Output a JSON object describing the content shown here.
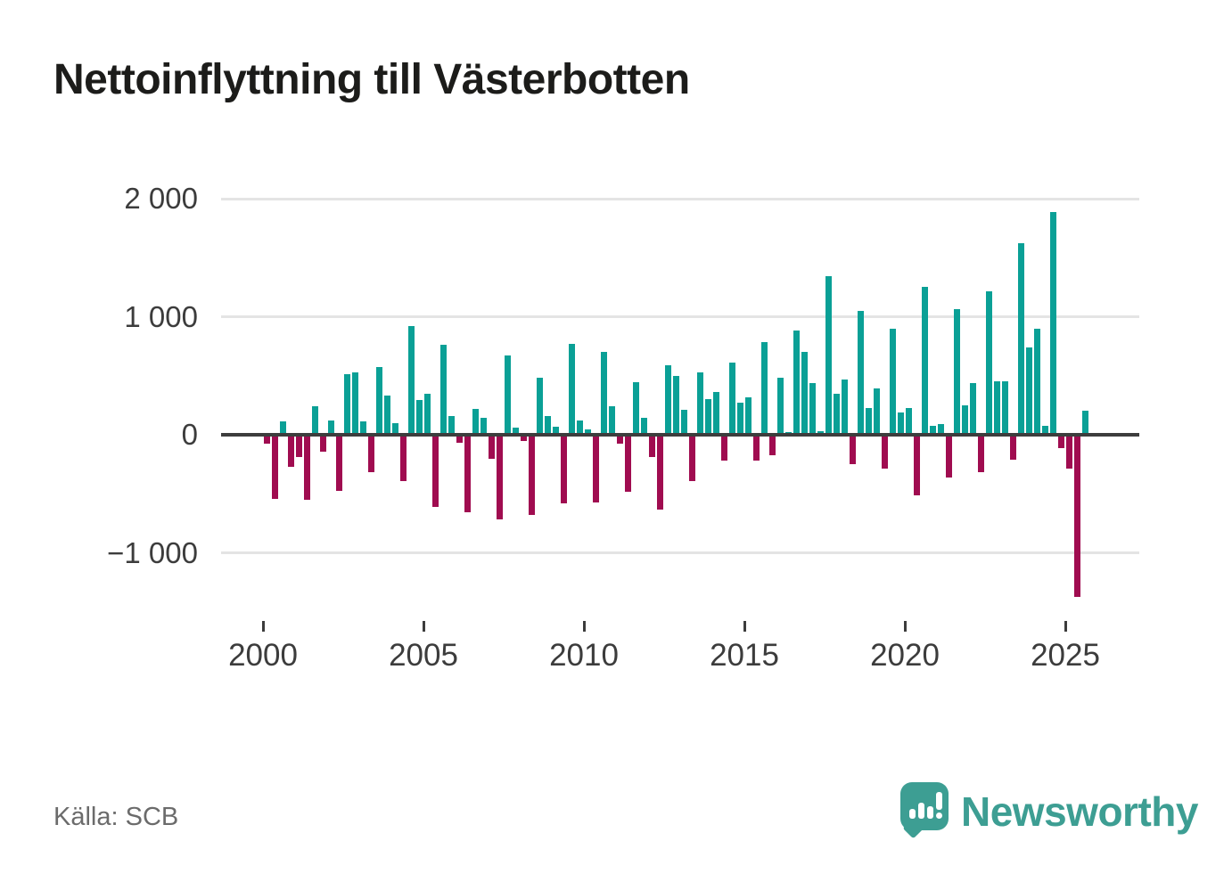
{
  "title": "Nettoinflyttning till Västerbotten",
  "source": "Källa: SCB",
  "logo": {
    "icon": "speech-bubble-bar-chart-icon",
    "text": "Newsworthy"
  },
  "colors": {
    "positive": "#0aa096",
    "negative": "#a00c50",
    "grid": "#e4e4e4",
    "zero_line": "#3d3d3d",
    "axis_text": "#3c3c3c",
    "title_text": "#1c1c1a",
    "source_text": "#6b6b6b",
    "logo": "#3d9e93"
  },
  "chart_data": {
    "type": "bar",
    "title": "Nettoinflyttning till Västerbotten",
    "xlabel": "",
    "ylabel": "",
    "legend": "none",
    "grid": "horizontal",
    "ylim": [
      -1500,
      2100
    ],
    "y_ticks": [
      2000,
      1000,
      0,
      -1000
    ],
    "y_tick_labels": [
      "2 000",
      "1 000",
      "0",
      "−1 000"
    ],
    "x_tick_years": [
      2000,
      2005,
      2010,
      2015,
      2020,
      2025
    ],
    "x_tick_labels": [
      "2000",
      "2005",
      "2010",
      "2015",
      "2020",
      "2025"
    ],
    "categories": [
      "2000K1",
      "2000K2",
      "2000K3",
      "2000K4",
      "2001K1",
      "2001K2",
      "2001K3",
      "2001K4",
      "2002K1",
      "2002K2",
      "2002K3",
      "2002K4",
      "2003K1",
      "2003K2",
      "2003K3",
      "2003K4",
      "2004K1",
      "2004K2",
      "2004K3",
      "2004K4",
      "2005K1",
      "2005K2",
      "2005K3",
      "2005K4",
      "2006K1",
      "2006K2",
      "2006K3",
      "2006K4",
      "2007K1",
      "2007K2",
      "2007K3",
      "2007K4",
      "2008K1",
      "2008K2",
      "2008K3",
      "2008K4",
      "2009K1",
      "2009K2",
      "2009K3",
      "2009K4",
      "2010K1",
      "2010K2",
      "2010K3",
      "2010K4",
      "2011K1",
      "2011K2",
      "2011K3",
      "2011K4",
      "2012K1",
      "2012K2",
      "2012K3",
      "2012K4",
      "2013K1",
      "2013K2",
      "2013K3",
      "2013K4",
      "2014K1",
      "2014K2",
      "2014K3",
      "2014K4",
      "2015K1",
      "2015K2",
      "2015K3",
      "2015K4",
      "2016K1",
      "2016K2",
      "2016K3",
      "2016K4",
      "2017K1",
      "2017K2",
      "2017K3",
      "2017K4",
      "2018K1",
      "2018K2",
      "2018K3",
      "2018K4",
      "2019K1",
      "2019K2",
      "2019K3",
      "2019K4",
      "2020K1",
      "2020K2",
      "2020K3",
      "2020K4",
      "2021K1",
      "2021K2",
      "2021K3",
      "2021K4",
      "2022K1",
      "2022K2",
      "2022K3",
      "2022K4",
      "2023K1",
      "2023K2",
      "2023K3",
      "2023K4",
      "2024K1",
      "2024K2",
      "2024K3",
      "2024K4",
      "2025K1",
      "2025K2",
      "2025K3"
    ],
    "values": [
      -75,
      -545,
      110,
      -270,
      -190,
      -550,
      240,
      -145,
      120,
      -475,
      515,
      525,
      110,
      -315,
      575,
      335,
      100,
      -395,
      920,
      295,
      350,
      -610,
      760,
      155,
      -70,
      -655,
      220,
      145,
      -200,
      -720,
      675,
      60,
      -55,
      -680,
      480,
      155,
      65,
      -580,
      770,
      120,
      45,
      -570,
      700,
      245,
      -75,
      -480,
      445,
      140,
      -190,
      -635,
      585,
      495,
      215,
      -390,
      530,
      300,
      365,
      -220,
      610,
      275,
      320,
      -220,
      785,
      -175,
      480,
      20,
      880,
      705,
      440,
      30,
      1340,
      350,
      465,
      -250,
      1050,
      225,
      390,
      -285,
      895,
      185,
      225,
      -510,
      1255,
      75,
      90,
      -365,
      1065,
      250,
      440,
      -320,
      1215,
      455,
      455,
      -210,
      1620,
      740,
      900,
      75,
      1885,
      -110,
      -285,
      -1370,
      205
    ]
  }
}
